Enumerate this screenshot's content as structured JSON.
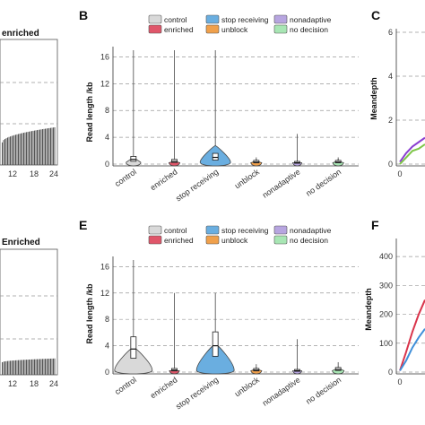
{
  "figure": {
    "panels": {
      "B": "B",
      "C": "C",
      "E": "E",
      "F": "F"
    },
    "left_titles": {
      "top": "enriched",
      "bottom": "Enriched"
    },
    "left_x_ticks": [
      "12",
      "18",
      "24"
    ],
    "legend": {
      "items": [
        {
          "name": "control",
          "color": "#d9d9d9"
        },
        {
          "name": "stop receiving",
          "color": "#6aaee0"
        },
        {
          "name": "nonadaptive",
          "color": "#b7a5e0"
        },
        {
          "name": "enriched",
          "color": "#e0566a"
        },
        {
          "name": "unblock",
          "color": "#f0a04b"
        },
        {
          "name": "no decision",
          "color": "#a8e6b4"
        }
      ]
    }
  },
  "chart_data": [
    {
      "type": "violin",
      "panel": "B",
      "ylabel": "Read length /kb",
      "ylim": [
        0,
        17
      ],
      "yticks": [
        0,
        4,
        8,
        12,
        16
      ],
      "categories": [
        "control",
        "enriched",
        "stop receiving",
        "unblock",
        "nonadaptive",
        "no decision"
      ],
      "max": [
        17,
        17,
        17,
        1,
        4.5,
        1
      ],
      "median": [
        0.7,
        0.4,
        1.0,
        0.3,
        0.2,
        0.3
      ],
      "bulge_height": [
        0.8,
        0.4,
        2.5,
        0.4,
        0.2,
        0.4
      ],
      "grid": "horizontal dashed"
    },
    {
      "type": "violin",
      "panel": "E",
      "ylabel": "Read length /kb",
      "ylim": [
        0,
        17
      ],
      "yticks": [
        0,
        4,
        8,
        12,
        16
      ],
      "categories": [
        "control",
        "enriched",
        "stop receiving",
        "unblock",
        "nonadaptive",
        "no decision"
      ],
      "max": [
        17,
        12,
        12,
        1.2,
        5,
        1.5
      ],
      "median": [
        3.5,
        0.3,
        4.0,
        0.3,
        0.2,
        0.4
      ],
      "bulge_height": [
        3.5,
        0.3,
        4.0,
        0.4,
        0.2,
        0.5
      ],
      "grid": "horizontal dashed"
    },
    {
      "type": "line",
      "panel": "C",
      "ylabel": "Meandepth",
      "ylim": [
        0,
        6
      ],
      "yticks": [
        0,
        2,
        4,
        6
      ],
      "xticks": [
        "0"
      ],
      "series": [
        {
          "color": "#8b3fd1",
          "x": [
            0,
            0.5,
            1,
            1.5,
            2
          ],
          "y": [
            0.1,
            0.5,
            0.8,
            1.0,
            1.2
          ]
        },
        {
          "color": "#7fc64a",
          "x": [
            0,
            0.5,
            1,
            1.5,
            2
          ],
          "y": [
            0.0,
            0.3,
            0.6,
            0.7,
            0.9
          ]
        }
      ]
    },
    {
      "type": "line",
      "panel": "F",
      "ylabel": "Meandepth",
      "ylim": [
        0,
        450
      ],
      "yticks": [
        0,
        100,
        200,
        300,
        400
      ],
      "xticks": [
        "0"
      ],
      "series": [
        {
          "color": "#d9344b",
          "x": [
            0,
            0.5,
            1,
            1.5,
            2
          ],
          "y": [
            5,
            70,
            140,
            200,
            250
          ]
        },
        {
          "color": "#3f8fd9",
          "x": [
            0,
            0.5,
            1,
            1.5,
            2
          ],
          "y": [
            5,
            40,
            85,
            120,
            150
          ]
        }
      ]
    },
    {
      "type": "bar",
      "panel": "left-top",
      "x": [
        0,
        24
      ],
      "y_profile": "rising curve to ~45% height",
      "xticks": [
        "12",
        "18",
        "24"
      ]
    },
    {
      "type": "bar",
      "panel": "left-bottom",
      "x": [
        0,
        24
      ],
      "y_profile": "flat ~15% height",
      "xticks": [
        "12",
        "18",
        "24"
      ]
    }
  ]
}
